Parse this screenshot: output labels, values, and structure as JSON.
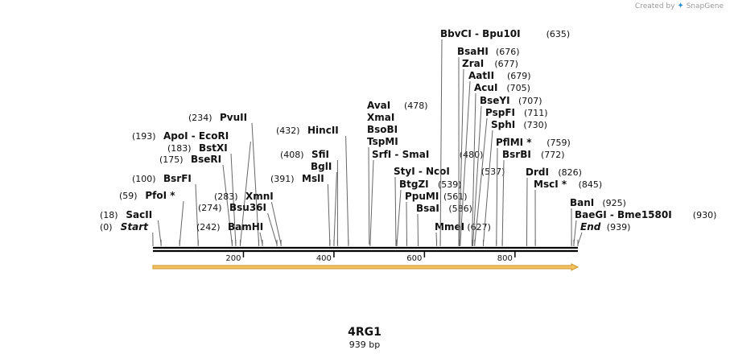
{
  "watermark": {
    "prefix": "Created by",
    "logo_icon": "snapgene-logo-icon",
    "brand": "SnapGene"
  },
  "construct": {
    "name": "4RG1",
    "size_label": "939 bp",
    "length": 939
  },
  "colors": {
    "backbone": "#000000",
    "feature_fill": "#f4c361",
    "feature_stroke": "#c8932a",
    "text": "#111111",
    "leader": "#666666"
  },
  "ticks": [
    {
      "pos": 200,
      "label": "200"
    },
    {
      "pos": 400,
      "label": "400"
    },
    {
      "pos": 600,
      "label": "600"
    },
    {
      "pos": 800,
      "label": "800"
    }
  ],
  "sites": [
    {
      "pos": 0,
      "names": [
        "Start"
      ],
      "pos_label": "(0)",
      "italic": true
    },
    {
      "pos": 18,
      "names": [
        "SacII"
      ],
      "pos_label": "(18)"
    },
    {
      "pos": 59,
      "names": [
        "PfoI *"
      ],
      "pos_label": "(59)"
    },
    {
      "pos": 100,
      "names": [
        "BsrFI"
      ],
      "pos_label": "(100)"
    },
    {
      "pos": 175,
      "names": [
        "BseRI"
      ],
      "pos_label": "(175)"
    },
    {
      "pos": 183,
      "names": [
        "BstXI"
      ],
      "pos_label": "(183)"
    },
    {
      "pos": 193,
      "names": [
        "ApoI",
        "EcoRI"
      ],
      "pos_label": "(193)"
    },
    {
      "pos": 234,
      "names": [
        "PvuII"
      ],
      "pos_label": "(234)"
    },
    {
      "pos": 242,
      "names": [
        "BamHI"
      ],
      "pos_label": "(242)"
    },
    {
      "pos": 274,
      "names": [
        "Bsu36I"
      ],
      "pos_label": "(274)"
    },
    {
      "pos": 283,
      "names": [
        "XmnI"
      ],
      "pos_label": "(283)"
    },
    {
      "pos": 391,
      "names": [
        "MslI"
      ],
      "pos_label": "(391)"
    },
    {
      "pos": 400,
      "names": [
        "BglI"
      ],
      "pos_label": ""
    },
    {
      "pos": 408,
      "names": [
        "SfiI"
      ],
      "pos_label": "(408)"
    },
    {
      "pos": 432,
      "names": [
        "HincII"
      ],
      "pos_label": "(432)"
    },
    {
      "pos": 478,
      "names": [
        "AvaI",
        "XmaI",
        "BsoBI",
        "TspMI"
      ],
      "pos_label": "(478)"
    },
    {
      "pos": 480,
      "names": [
        "SrfI",
        "SmaI"
      ],
      "pos_label": "(480)"
    },
    {
      "pos": 537,
      "names": [
        "StyI",
        "NcoI"
      ],
      "pos_label": "(537)"
    },
    {
      "pos": 539,
      "names": [
        "BtgZI"
      ],
      "pos_label": "(539)"
    },
    {
      "pos": 561,
      "names": [
        "PpuMI"
      ],
      "pos_label": "(561)"
    },
    {
      "pos": 586,
      "names": [
        "BsaI"
      ],
      "pos_label": "(586)"
    },
    {
      "pos": 627,
      "names": [
        "MmeI"
      ],
      "pos_label": "(627)"
    },
    {
      "pos": 635,
      "names": [
        "BbvCI",
        "Bpu10I"
      ],
      "pos_label": "(635)"
    },
    {
      "pos": 676,
      "names": [
        "BsaHI"
      ],
      "pos_label": "(676)"
    },
    {
      "pos": 677,
      "names": [
        "ZraI"
      ],
      "pos_label": "(677)"
    },
    {
      "pos": 679,
      "names": [
        "AatII"
      ],
      "pos_label": "(679)"
    },
    {
      "pos": 705,
      "names": [
        "AcuI"
      ],
      "pos_label": "(705)"
    },
    {
      "pos": 707,
      "names": [
        "BseYI"
      ],
      "pos_label": "(707)"
    },
    {
      "pos": 711,
      "names": [
        "PspFI"
      ],
      "pos_label": "(711)"
    },
    {
      "pos": 730,
      "names": [
        "SphI"
      ],
      "pos_label": "(730)"
    },
    {
      "pos": 759,
      "names": [
        "PflMI *"
      ],
      "pos_label": "(759)"
    },
    {
      "pos": 772,
      "names": [
        "BsrBI"
      ],
      "pos_label": "(772)"
    },
    {
      "pos": 826,
      "names": [
        "DrdI"
      ],
      "pos_label": "(826)"
    },
    {
      "pos": 845,
      "names": [
        "MscI *"
      ],
      "pos_label": "(845)"
    },
    {
      "pos": 925,
      "names": [
        "BanI"
      ],
      "pos_label": "(925)"
    },
    {
      "pos": 930,
      "names": [
        "BaeGI",
        "Bme1580I"
      ],
      "pos_label": "(930)"
    },
    {
      "pos": 939,
      "names": [
        "End"
      ],
      "pos_label": "(939)",
      "italic": true
    }
  ]
}
